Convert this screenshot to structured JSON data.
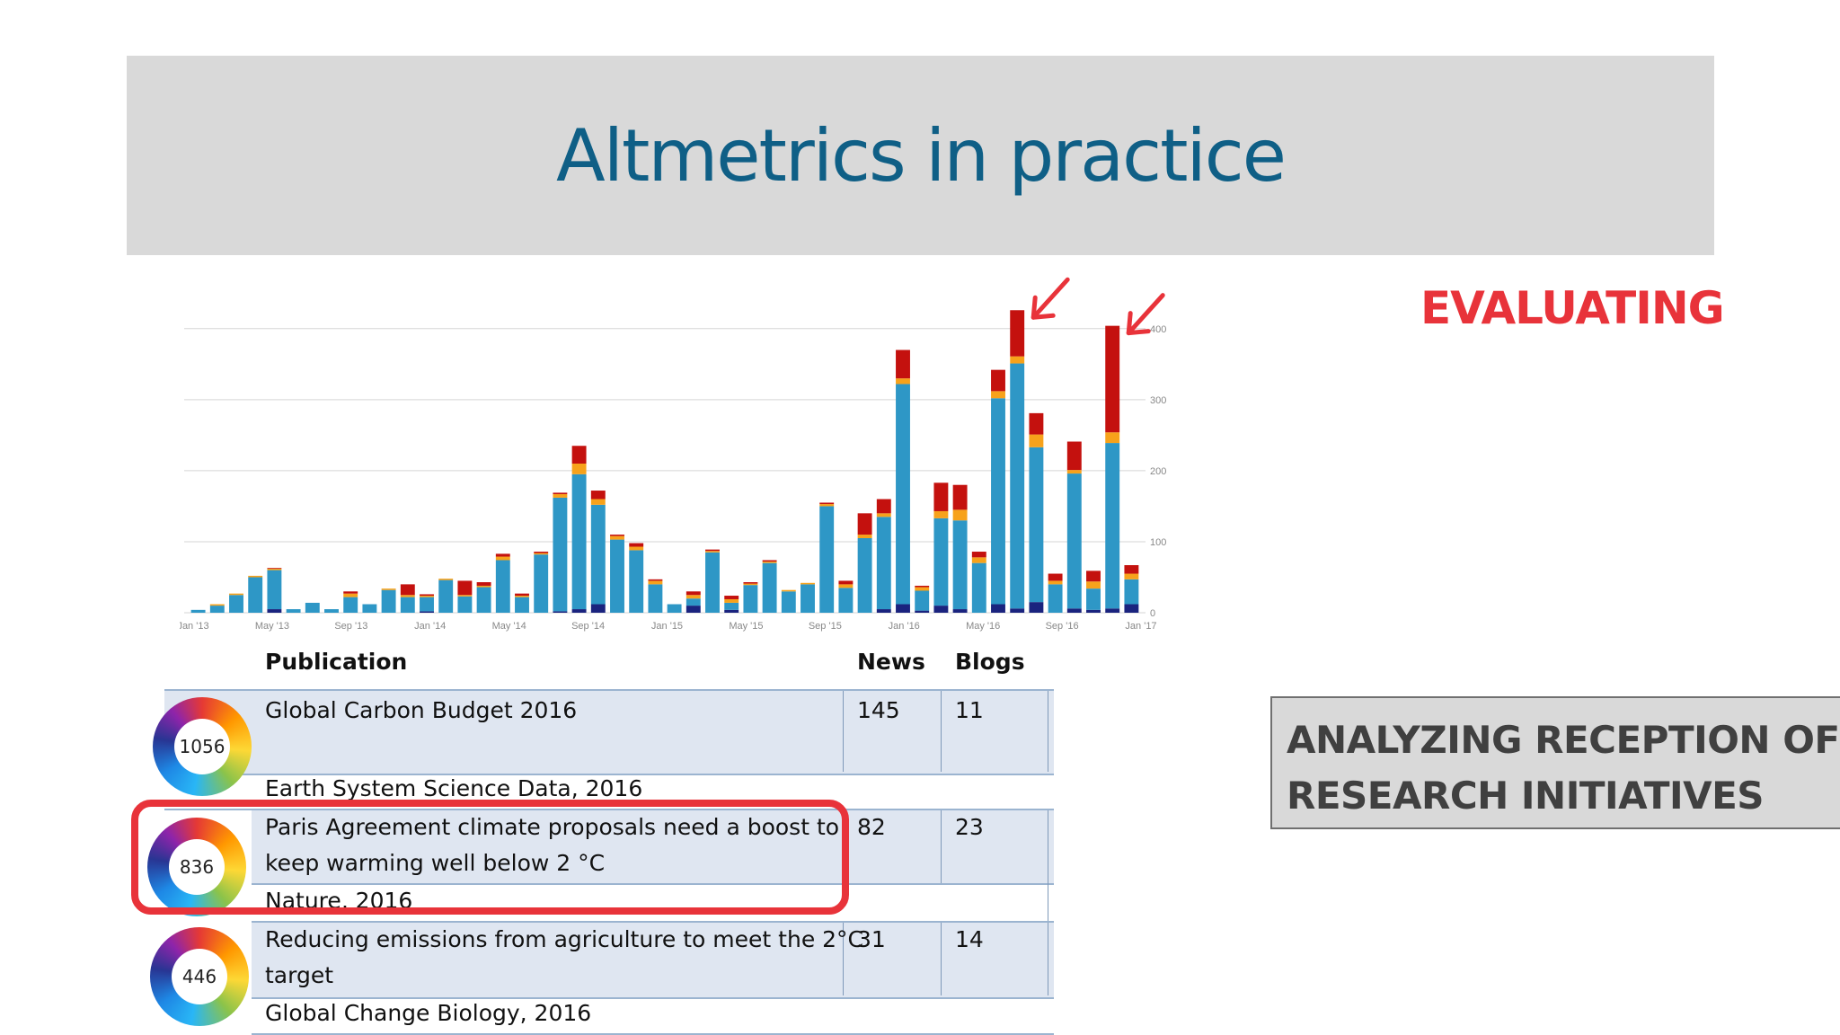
{
  "slide": {
    "title": "Altmetrics in practice",
    "evaluating_label": "EVALUATING",
    "analyzing_label": "ANALYZING RECEPTION OF RESEARCH INITIATIVES",
    "colors": {
      "title": "#0f5f86",
      "accent": "#e8333a",
      "title_bar": "#d9d9d9"
    }
  },
  "chart_data": {
    "type": "bar",
    "stacked": true,
    "x_tick_labels": [
      "Jan '13",
      "May '13",
      "Sep '13",
      "Jan '14",
      "May '14",
      "Sep '14",
      "Jan '15",
      "May '15",
      "Sep '15",
      "Jan '16",
      "May '16",
      "Sep '16",
      "Jan '17"
    ],
    "y_tick_labels": [
      "0",
      "100",
      "200",
      "300",
      "400"
    ],
    "ylim": [
      0,
      420
    ],
    "grid": true,
    "series_colors": [
      "#1a237e",
      "#2e97c6",
      "#f7a21b",
      "#c4110e",
      "#9c27b0"
    ],
    "bars": [
      [
        0,
        4,
        0,
        0,
        0
      ],
      [
        0,
        10,
        2,
        0,
        0
      ],
      [
        0,
        25,
        2,
        0,
        0
      ],
      [
        0,
        50,
        2,
        0,
        0
      ],
      [
        5,
        55,
        2,
        1,
        0
      ],
      [
        0,
        5,
        0,
        0,
        0
      ],
      [
        0,
        14,
        0,
        0,
        0
      ],
      [
        0,
        5,
        0,
        0,
        0
      ],
      [
        0,
        22,
        5,
        3,
        0
      ],
      [
        0,
        12,
        0,
        0,
        0
      ],
      [
        0,
        32,
        2,
        0,
        0
      ],
      [
        0,
        22,
        3,
        15,
        0
      ],
      [
        2,
        20,
        2,
        2,
        0
      ],
      [
        0,
        46,
        2,
        0,
        0
      ],
      [
        0,
        23,
        2,
        20,
        0
      ],
      [
        0,
        36,
        2,
        5,
        0
      ],
      [
        0,
        74,
        5,
        4,
        0
      ],
      [
        0,
        22,
        2,
        3,
        0
      ],
      [
        0,
        82,
        2,
        2,
        0
      ],
      [
        2,
        160,
        5,
        2,
        0
      ],
      [
        5,
        190,
        15,
        25,
        0
      ],
      [
        12,
        140,
        8,
        12,
        0
      ],
      [
        0,
        103,
        5,
        2,
        0
      ],
      [
        0,
        88,
        5,
        5,
        0
      ],
      [
        0,
        40,
        5,
        2,
        0
      ],
      [
        0,
        12,
        0,
        0,
        0
      ],
      [
        10,
        10,
        5,
        5,
        0
      ],
      [
        0,
        85,
        2,
        2,
        0
      ],
      [
        4,
        10,
        5,
        5,
        0
      ],
      [
        0,
        39,
        2,
        2,
        0
      ],
      [
        0,
        70,
        2,
        2,
        0
      ],
      [
        0,
        30,
        2,
        0,
        0
      ],
      [
        0,
        40,
        2,
        0,
        0
      ],
      [
        0,
        150,
        3,
        2,
        0
      ],
      [
        0,
        35,
        5,
        5,
        0
      ],
      [
        0,
        105,
        5,
        30,
        0
      ],
      [
        5,
        130,
        5,
        20,
        0
      ],
      [
        12,
        310,
        8,
        40,
        0
      ],
      [
        3,
        28,
        5,
        2,
        0
      ],
      [
        10,
        123,
        10,
        40,
        0
      ],
      [
        5,
        125,
        15,
        35,
        0
      ],
      [
        0,
        70,
        8,
        8,
        0
      ],
      [
        12,
        290,
        10,
        30,
        0
      ],
      [
        6,
        345,
        10,
        65,
        0
      ],
      [
        15,
        218,
        18,
        30,
        0
      ],
      [
        0,
        40,
        5,
        10,
        0
      ],
      [
        6,
        190,
        5,
        40,
        0
      ],
      [
        4,
        30,
        10,
        15,
        0
      ],
      [
        6,
        233,
        15,
        150,
        0
      ],
      [
        12,
        35,
        8,
        12,
        0
      ]
    ],
    "arrows_at_bar_index": [
      43,
      48
    ]
  },
  "table": {
    "headers": {
      "publication": "Publication",
      "news": "News",
      "blogs": "Blogs"
    },
    "rows": [
      {
        "score": "1056",
        "title_lines": [
          "Global Carbon Budget 2016"
        ],
        "journal": "Earth System Science Data, 2016",
        "news": "145",
        "blogs": "11"
      },
      {
        "score": "836",
        "title_lines": [
          "Paris Agreement climate proposals need a boost to",
          "keep warming well below 2 °C"
        ],
        "journal": "Nature, 2016",
        "news": "82",
        "blogs": "23"
      },
      {
        "score": "446",
        "title_lines": [
          "Reducing emissions from agriculture to meet the 2°C",
          "target"
        ],
        "journal": "Global Change Biology, 2016",
        "news": "31",
        "blogs": "14"
      }
    ]
  }
}
